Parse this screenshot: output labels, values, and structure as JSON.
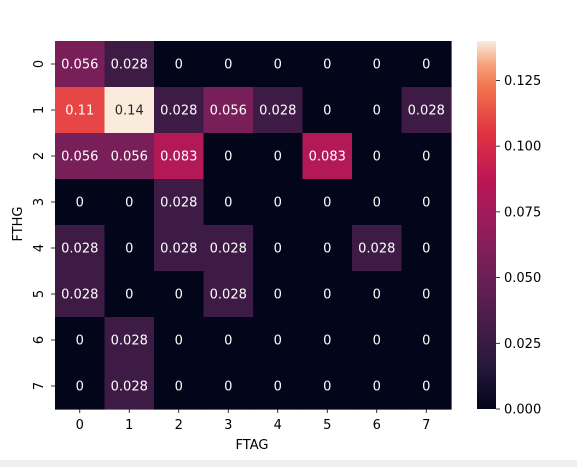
{
  "chart_data": {
    "type": "heatmap",
    "xlabel": "FTAG",
    "ylabel": "FTHG",
    "x_categories": [
      "0",
      "1",
      "2",
      "3",
      "4",
      "5",
      "6",
      "7"
    ],
    "y_categories": [
      "0",
      "1",
      "2",
      "3",
      "4",
      "5",
      "6",
      "7"
    ],
    "values": [
      [
        0.056,
        0.028,
        0,
        0,
        0,
        0,
        0,
        0
      ],
      [
        0.11,
        0.14,
        0.028,
        0.056,
        0.028,
        0,
        0,
        0.028
      ],
      [
        0.056,
        0.056,
        0.083,
        0,
        0,
        0.083,
        0,
        0
      ],
      [
        0,
        0,
        0.028,
        0,
        0,
        0,
        0,
        0
      ],
      [
        0.028,
        0,
        0.028,
        0.028,
        0,
        0,
        0.028,
        0
      ],
      [
        0.028,
        0,
        0,
        0.028,
        0,
        0,
        0,
        0
      ],
      [
        0,
        0.028,
        0,
        0,
        0,
        0,
        0,
        0
      ],
      [
        0,
        0.028,
        0,
        0,
        0,
        0,
        0,
        0
      ]
    ],
    "value_labels": [
      [
        "0.056",
        "0.028",
        "0",
        "0",
        "0",
        "0",
        "0",
        "0"
      ],
      [
        "0.11",
        "0.14",
        "0.028",
        "0.056",
        "0.028",
        "0",
        "0",
        "0.028"
      ],
      [
        "0.056",
        "0.056",
        "0.083",
        "0",
        "0",
        "0.083",
        "0",
        "0"
      ],
      [
        "0",
        "0",
        "0.028",
        "0",
        "0",
        "0",
        "0",
        "0"
      ],
      [
        "0.028",
        "0",
        "0.028",
        "0.028",
        "0",
        "0",
        "0.028",
        "0"
      ],
      [
        "0.028",
        "0",
        "0",
        "0.028",
        "0",
        "0",
        "0",
        "0"
      ],
      [
        "0",
        "0.028",
        "0",
        "0",
        "0",
        "0",
        "0",
        "0"
      ],
      [
        "0",
        "0.028",
        "0",
        "0",
        "0",
        "0",
        "0",
        "0"
      ]
    ],
    "colorbar": {
      "vmin": 0,
      "vmax": 0.14,
      "ticks": [
        0,
        0.025,
        0.05,
        0.075,
        0.1,
        0.125
      ],
      "tick_labels": [
        "0.000",
        "0.025",
        "0.050",
        "0.075",
        "0.100",
        "0.125"
      ]
    },
    "colormap": "rocket",
    "grid": false
  }
}
